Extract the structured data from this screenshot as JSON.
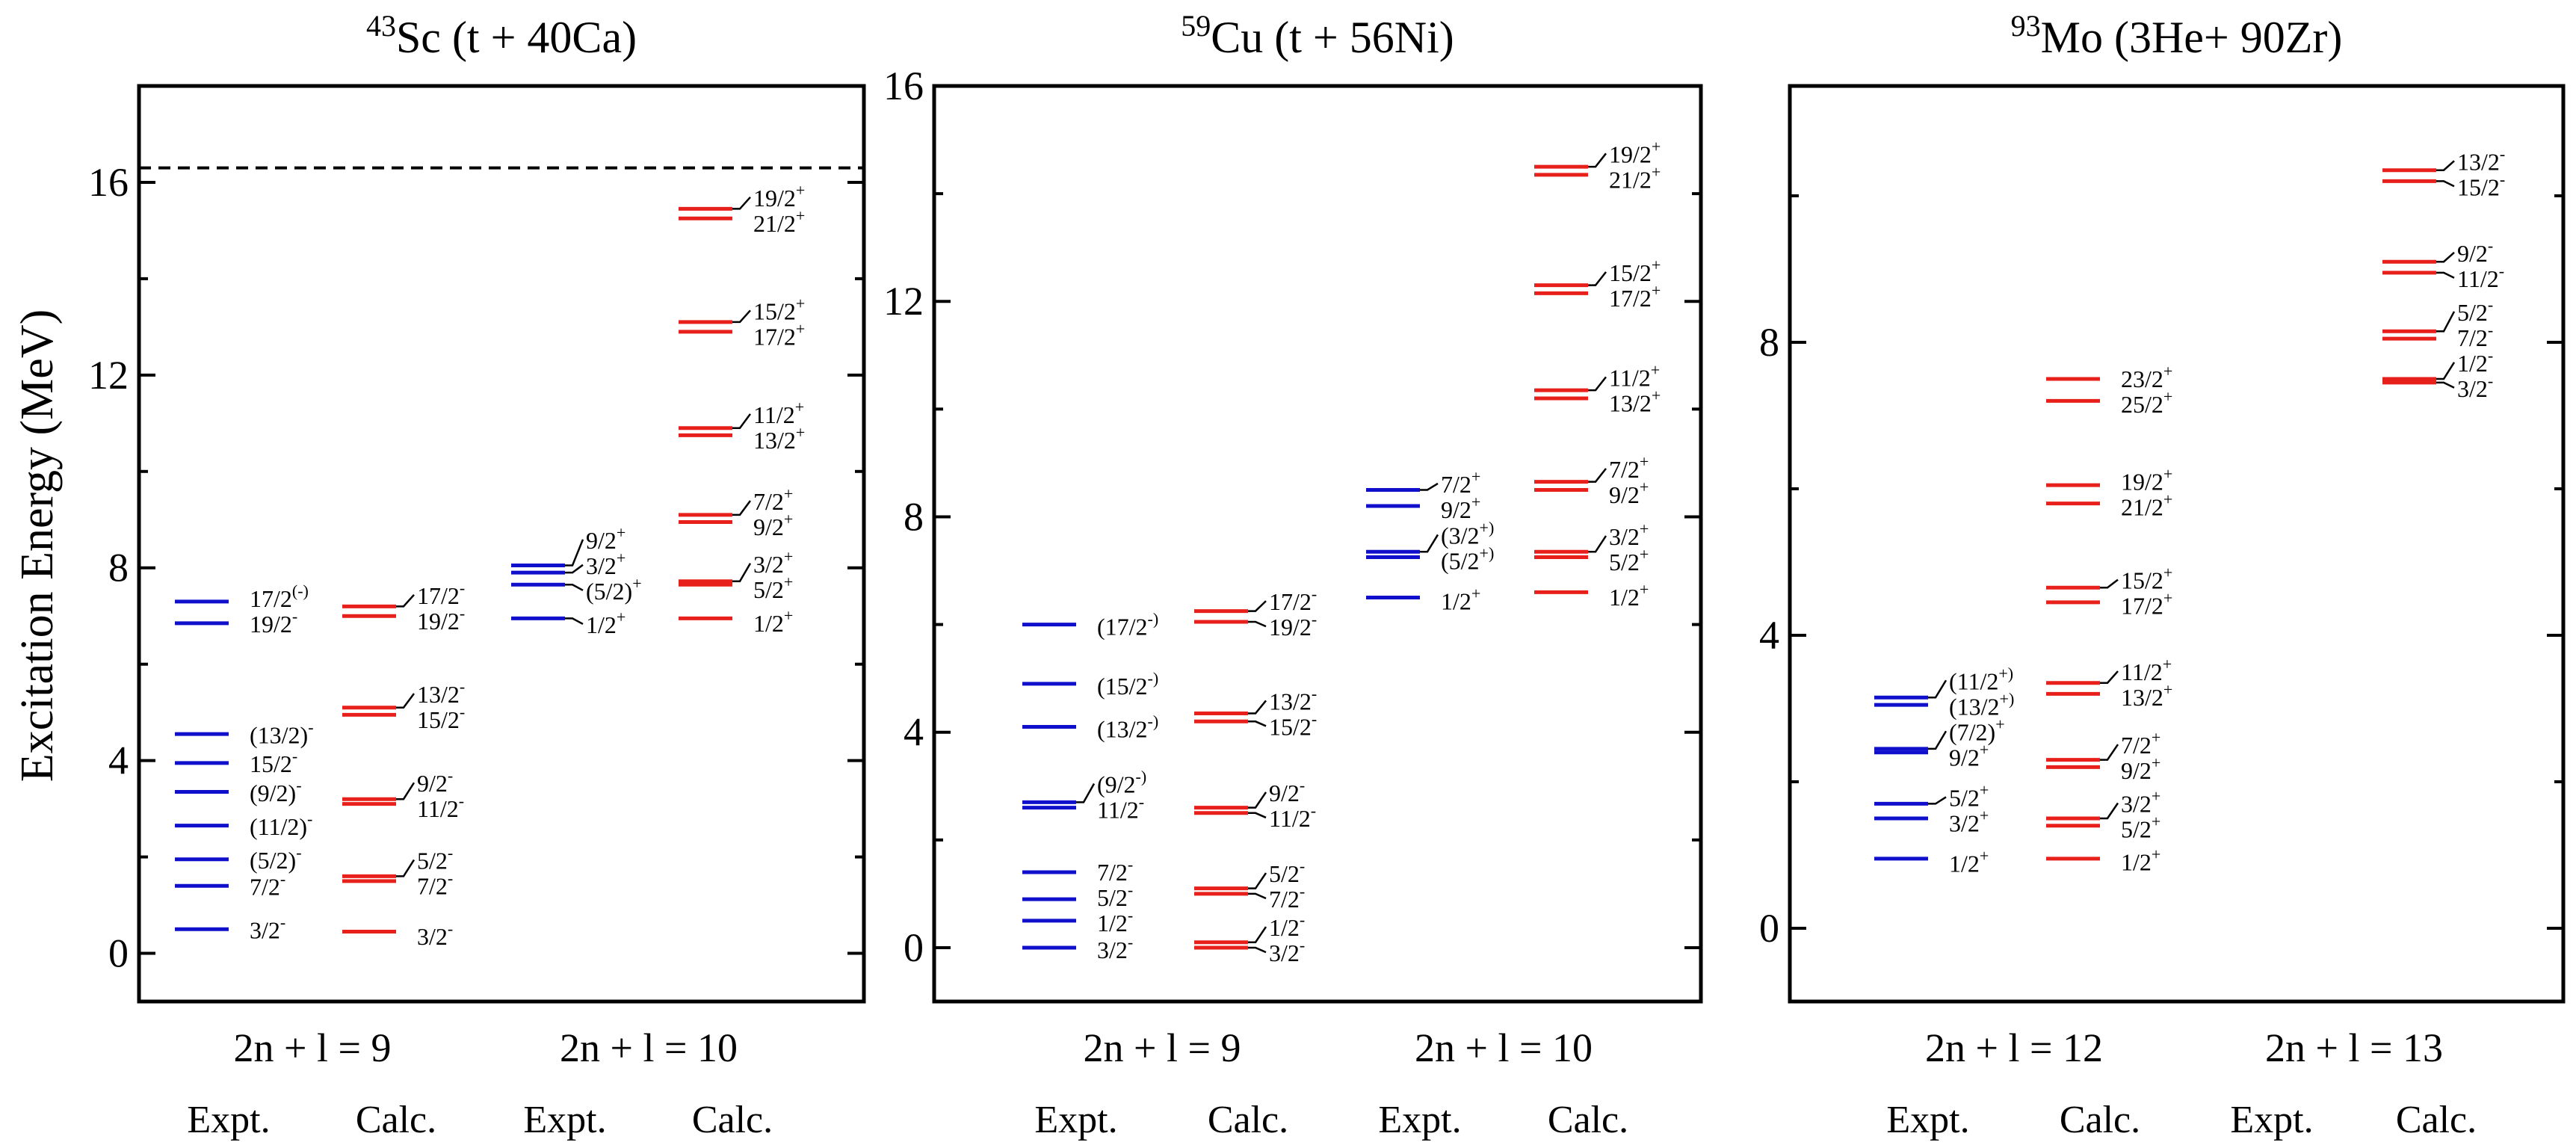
{
  "colors": {
    "expt": "#1010cc",
    "calc": "#e8201c",
    "axis": "#000000"
  },
  "ylabel": "Excitation Energy (MeV)",
  "chart_data": [
    {
      "type": "level-scheme",
      "title": {
        "mass": "43",
        "sym": "Sc",
        "reaction": " (t + 40Ca)"
      },
      "ylim": [
        -1,
        18
      ],
      "ticks": [
        0,
        4,
        8,
        12,
        16
      ],
      "threshold": 16.3,
      "groups": [
        "2n + l = 9",
        "2n + l = 10"
      ],
      "columns": [
        "Expt.",
        "Calc.",
        "Expt.",
        "Calc."
      ],
      "levels": [
        [
          {
            "e": 0.5,
            "j": "3/2",
            "p": "-"
          },
          {
            "e": 1.4,
            "j": "7/2",
            "p": "-"
          },
          {
            "e": 1.95,
            "j": "(5/2)",
            "p": "-"
          },
          {
            "e": 2.65,
            "j": "(11/2)",
            "p": "-"
          },
          {
            "e": 3.35,
            "j": "(9/2)",
            "p": "-"
          },
          {
            "e": 3.95,
            "j": "15/2",
            "p": "-"
          },
          {
            "e": 4.55,
            "j": "(13/2)",
            "p": "-"
          },
          {
            "e": 6.85,
            "j": "19/2",
            "p": "-"
          },
          {
            "e": 7.3,
            "j": "17/2",
            "p": "(-)"
          }
        ],
        [
          {
            "e": 0.45,
            "j": "3/2",
            "p": "-"
          },
          {
            "e": 1.5,
            "j": "7/2",
            "p": "-"
          },
          {
            "e": 1.6,
            "j": "5/2",
            "p": "-"
          },
          {
            "e": 3.1,
            "j": "11/2",
            "p": "-"
          },
          {
            "e": 3.2,
            "j": "9/2",
            "p": "-"
          },
          {
            "e": 4.95,
            "j": "15/2",
            "p": "-"
          },
          {
            "e": 5.1,
            "j": "13/2",
            "p": "-"
          },
          {
            "e": 7.0,
            "j": "19/2",
            "p": "-"
          },
          {
            "e": 7.2,
            "j": "17/2",
            "p": "-"
          }
        ],
        [
          {
            "e": 6.95,
            "j": "1/2",
            "p": "+"
          },
          {
            "e": 7.65,
            "j": "(5/2)",
            "p": "+"
          },
          {
            "e": 7.9,
            "j": "3/2",
            "p": "+"
          },
          {
            "e": 8.05,
            "j": "9/2",
            "p": "+"
          }
        ],
        [
          {
            "e": 6.95,
            "j": "1/2",
            "p": "+"
          },
          {
            "e": 7.65,
            "j": "5/2",
            "p": "+"
          },
          {
            "e": 7.72,
            "j": "3/2",
            "p": "+"
          },
          {
            "e": 8.95,
            "j": "9/2",
            "p": "+"
          },
          {
            "e": 9.1,
            "j": "7/2",
            "p": "+"
          },
          {
            "e": 10.75,
            "j": "13/2",
            "p": "+"
          },
          {
            "e": 10.9,
            "j": "11/2",
            "p": "+"
          },
          {
            "e": 12.9,
            "j": "17/2",
            "p": "+"
          },
          {
            "e": 13.1,
            "j": "15/2",
            "p": "+"
          },
          {
            "e": 15.25,
            "j": "21/2",
            "p": "+"
          },
          {
            "e": 15.45,
            "j": "19/2",
            "p": "+"
          }
        ]
      ]
    },
    {
      "type": "level-scheme",
      "title": {
        "mass": "59",
        "sym": "Cu",
        "reaction": " (t + 56Ni)"
      },
      "ylim": [
        -1,
        16
      ],
      "ticks": [
        0,
        4,
        8,
        12,
        16
      ],
      "groups": [
        "2n + l = 9",
        "2n + l = 10"
      ],
      "columns": [
        "Expt.",
        "Calc.",
        "Expt.",
        "Calc."
      ],
      "levels": [
        [
          {
            "e": 0.0,
            "j": "3/2",
            "p": "-"
          },
          {
            "e": 0.5,
            "j": "1/2",
            "p": "-"
          },
          {
            "e": 0.9,
            "j": "5/2",
            "p": "-"
          },
          {
            "e": 1.4,
            "j": "7/2",
            "p": "-"
          },
          {
            "e": 2.6,
            "j": "11/2",
            "p": "-"
          },
          {
            "e": 2.7,
            "j": "(9/2",
            "p": "-)"
          },
          {
            "e": 4.1,
            "j": "(13/2",
            "p": "-)"
          },
          {
            "e": 4.9,
            "j": "(15/2",
            "p": "-)"
          },
          {
            "e": 6.0,
            "j": "(17/2",
            "p": "-)"
          }
        ],
        [
          {
            "e": 0.0,
            "j": "3/2",
            "p": "-"
          },
          {
            "e": 0.1,
            "j": "1/2",
            "p": "-"
          },
          {
            "e": 1.0,
            "j": "7/2",
            "p": "-"
          },
          {
            "e": 1.1,
            "j": "5/2",
            "p": "-"
          },
          {
            "e": 2.5,
            "j": "11/2",
            "p": "-"
          },
          {
            "e": 2.6,
            "j": "9/2",
            "p": "-"
          },
          {
            "e": 4.2,
            "j": "15/2",
            "p": "-"
          },
          {
            "e": 4.35,
            "j": "13/2",
            "p": "-"
          },
          {
            "e": 6.05,
            "j": "19/2",
            "p": "-"
          },
          {
            "e": 6.25,
            "j": "17/2",
            "p": "-"
          }
        ],
        [
          {
            "e": 6.5,
            "j": "1/2",
            "p": "+"
          },
          {
            "e": 7.25,
            "j": "(5/2",
            "p": "+)"
          },
          {
            "e": 7.35,
            "j": "(3/2",
            "p": "+)"
          },
          {
            "e": 8.2,
            "j": "9/2",
            "p": "+"
          },
          {
            "e": 8.5,
            "j": "7/2",
            "p": "+"
          }
        ],
        [
          {
            "e": 6.6,
            "j": "1/2",
            "p": "+"
          },
          {
            "e": 7.25,
            "j": "5/2",
            "p": "+"
          },
          {
            "e": 7.35,
            "j": "3/2",
            "p": "+"
          },
          {
            "e": 8.5,
            "j": "9/2",
            "p": "+"
          },
          {
            "e": 8.65,
            "j": "7/2",
            "p": "+"
          },
          {
            "e": 10.2,
            "j": "13/2",
            "p": "+"
          },
          {
            "e": 10.35,
            "j": "11/2",
            "p": "+"
          },
          {
            "e": 12.15,
            "j": "17/2",
            "p": "+"
          },
          {
            "e": 12.3,
            "j": "15/2",
            "p": "+"
          },
          {
            "e": 14.35,
            "j": "21/2",
            "p": "+"
          },
          {
            "e": 14.5,
            "j": "19/2",
            "p": "+"
          }
        ]
      ]
    },
    {
      "type": "level-scheme",
      "title": {
        "mass": "93",
        "sym": "Mo",
        "reaction": " (3He+ 90Zr)"
      },
      "ylim": [
        -1,
        11.5
      ],
      "ticks": [
        0,
        4,
        8
      ],
      "groups": [
        "2n + l = 12",
        "2n + l = 13"
      ],
      "columns": [
        "Expt.",
        "Calc.",
        "Expt.",
        "Calc."
      ],
      "levels": [
        [
          {
            "e": 0.95,
            "j": "1/2",
            "p": "+"
          },
          {
            "e": 1.5,
            "j": "3/2",
            "p": "+"
          },
          {
            "e": 1.7,
            "j": "5/2",
            "p": "+"
          },
          {
            "e": 2.4,
            "j": "9/2",
            "p": "+"
          },
          {
            "e": 2.45,
            "j": "(7/2)",
            "p": "+"
          },
          {
            "e": 3.05,
            "j": "(13/2",
            "p": "+)"
          },
          {
            "e": 3.15,
            "j": "(11/2",
            "p": "+)"
          }
        ],
        [
          {
            "e": 0.95,
            "j": "1/2",
            "p": "+"
          },
          {
            "e": 1.4,
            "j": "5/2",
            "p": "+"
          },
          {
            "e": 1.5,
            "j": "3/2",
            "p": "+"
          },
          {
            "e": 2.2,
            "j": "9/2",
            "p": "+"
          },
          {
            "e": 2.3,
            "j": "7/2",
            "p": "+"
          },
          {
            "e": 3.2,
            "j": "13/2",
            "p": "+"
          },
          {
            "e": 3.35,
            "j": "11/2",
            "p": "+"
          },
          {
            "e": 4.45,
            "j": "17/2",
            "p": "+"
          },
          {
            "e": 4.65,
            "j": "15/2",
            "p": "+"
          },
          {
            "e": 5.8,
            "j": "21/2",
            "p": "+"
          },
          {
            "e": 6.05,
            "j": "19/2",
            "p": "+"
          },
          {
            "e": 7.2,
            "j": "25/2",
            "p": "+"
          },
          {
            "e": 7.5,
            "j": "23/2",
            "p": "+"
          }
        ],
        [],
        [
          {
            "e": 7.45,
            "j": "3/2",
            "p": "-"
          },
          {
            "e": 7.5,
            "j": "1/2",
            "p": "-"
          },
          {
            "e": 8.05,
            "j": "7/2",
            "p": "-"
          },
          {
            "e": 8.15,
            "j": "5/2",
            "p": "-"
          },
          {
            "e": 8.95,
            "j": "11/2",
            "p": "-"
          },
          {
            "e": 9.1,
            "j": "9/2",
            "p": "-"
          },
          {
            "e": 10.2,
            "j": "15/2",
            "p": "-"
          },
          {
            "e": 10.35,
            "j": "13/2",
            "p": "-"
          }
        ]
      ]
    }
  ]
}
